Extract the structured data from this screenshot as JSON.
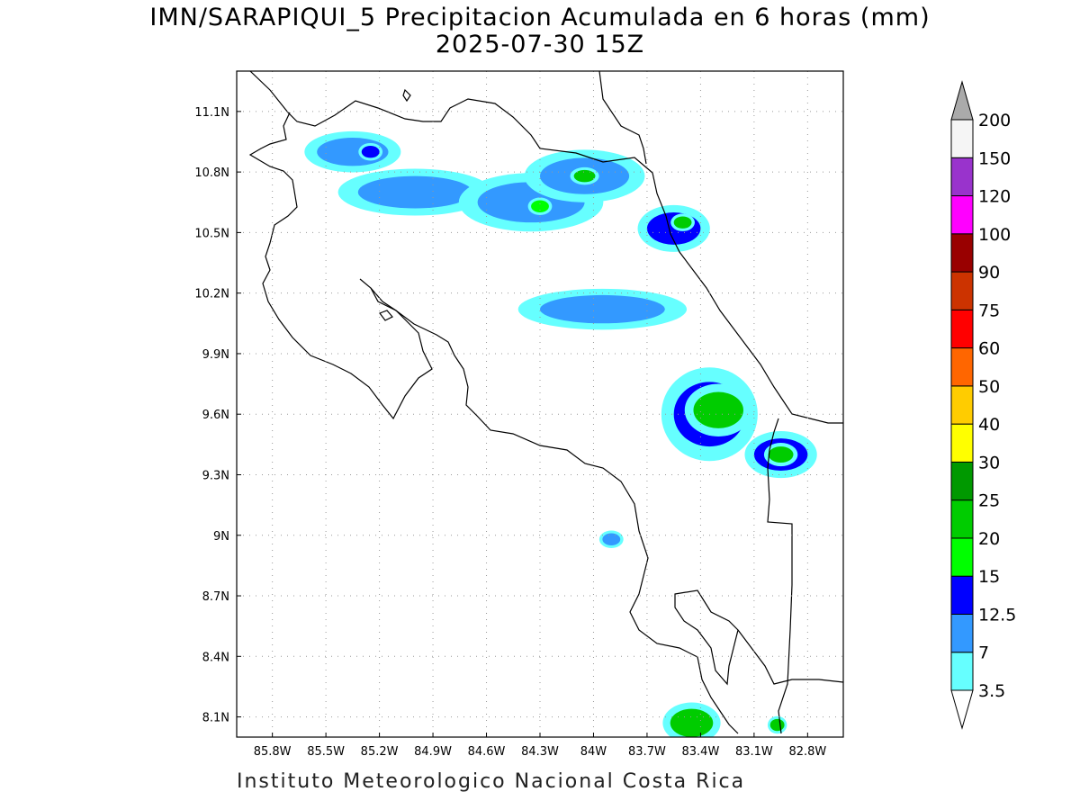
{
  "title_line1": "IMN/SARAPIQUI_5 Precipitacion Acumulada en 6 horas (mm)",
  "title_line2": "2025-07-30 15Z",
  "footer": "Instituto Meteorologico Nacional Costa Rica",
  "map": {
    "lon_range": [
      -86.0,
      -82.6
    ],
    "lat_range": [
      8.0,
      11.3
    ],
    "x_ticks": [
      "85.8W",
      "85.5W",
      "85.2W",
      "84.9W",
      "84.6W",
      "84.3W",
      "84W",
      "83.7W",
      "83.4W",
      "83.1W",
      "82.8W"
    ],
    "x_tick_values": [
      -85.8,
      -85.5,
      -85.2,
      -84.9,
      -84.6,
      -84.3,
      -84.0,
      -83.7,
      -83.4,
      -83.1,
      -82.8
    ],
    "y_ticks": [
      "11.1N",
      "10.8N",
      "10.5N",
      "10.2N",
      "9.9N",
      "9.6N",
      "9.3N",
      "9N",
      "8.7N",
      "8.4N",
      "8.1N"
    ],
    "y_tick_values": [
      11.1,
      10.8,
      10.5,
      10.2,
      9.9,
      9.6,
      9.3,
      9.0,
      8.7,
      8.4,
      8.1
    ],
    "grid": "dotted"
  },
  "colorbar": {
    "levels": [
      "3.5",
      "7",
      "12.5",
      "15",
      "20",
      "25",
      "30",
      "40",
      "50",
      "60",
      "75",
      "90",
      "100",
      "120",
      "150",
      "200"
    ],
    "colors": [
      "#66ffff",
      "#3399ff",
      "#0000ff",
      "#00ff00",
      "#00cc00",
      "#009900",
      "#ffff00",
      "#ffcc00",
      "#ff6600",
      "#ff0000",
      "#cc3300",
      "#990000",
      "#ff00ff",
      "#9933cc",
      "#f5f5f5",
      "#aaaaaa"
    ]
  },
  "chart_data": {
    "type": "heatmap",
    "variable": "Precipitacion Acumulada en 6 horas (mm)",
    "blobs": [
      {
        "lon": -85.0,
        "lat": 10.7,
        "rx": 0.32,
        "ry": 0.08,
        "level": 7
      },
      {
        "lon": -85.35,
        "lat": 10.9,
        "rx": 0.2,
        "ry": 0.07,
        "level": 7
      },
      {
        "lon": -85.25,
        "lat": 10.9,
        "rx": 0.05,
        "ry": 0.03,
        "level": 12.5
      },
      {
        "lon": -84.35,
        "lat": 10.65,
        "rx": 0.3,
        "ry": 0.1,
        "level": 7
      },
      {
        "lon": -84.3,
        "lat": 10.63,
        "rx": 0.05,
        "ry": 0.03,
        "level": 15
      },
      {
        "lon": -84.05,
        "lat": 10.78,
        "rx": 0.25,
        "ry": 0.09,
        "level": 7
      },
      {
        "lon": -84.05,
        "lat": 10.78,
        "rx": 0.06,
        "ry": 0.03,
        "level": 20
      },
      {
        "lon": -83.55,
        "lat": 10.52,
        "rx": 0.15,
        "ry": 0.08,
        "level": 12.5
      },
      {
        "lon": -83.5,
        "lat": 10.55,
        "rx": 0.05,
        "ry": 0.03,
        "level": 20
      },
      {
        "lon": -83.95,
        "lat": 10.12,
        "rx": 0.35,
        "ry": 0.07,
        "level": 7
      },
      {
        "lon": -83.35,
        "lat": 9.6,
        "rx": 0.2,
        "ry": 0.16,
        "level": 12.5
      },
      {
        "lon": -83.3,
        "lat": 9.62,
        "rx": 0.14,
        "ry": 0.09,
        "level": 20
      },
      {
        "lon": -82.95,
        "lat": 9.4,
        "rx": 0.15,
        "ry": 0.08,
        "level": 12.5
      },
      {
        "lon": -82.95,
        "lat": 9.4,
        "rx": 0.07,
        "ry": 0.04,
        "level": 20
      },
      {
        "lon": -83.45,
        "lat": 8.07,
        "rx": 0.12,
        "ry": 0.07,
        "level": 20
      },
      {
        "lon": -83.9,
        "lat": 8.98,
        "rx": 0.05,
        "ry": 0.03,
        "level": 7
      },
      {
        "lon": -82.97,
        "lat": 8.06,
        "rx": 0.04,
        "ry": 0.03,
        "level": 20
      }
    ]
  }
}
